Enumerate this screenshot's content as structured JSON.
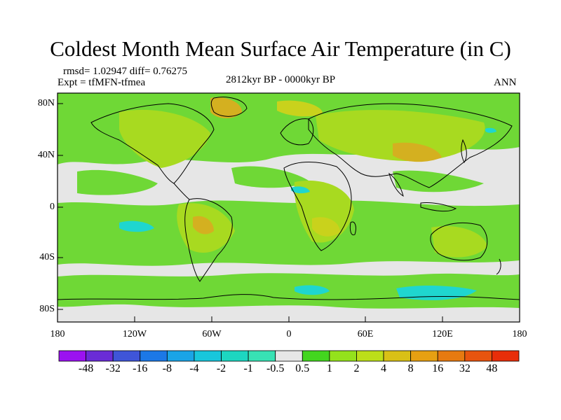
{
  "title": "Coldest Month Mean Surface Air Temperature (in C)",
  "stats": "rmsd= 1.02947 diff= 0.76275",
  "experiment": "Expt = tfMFN-tfmea",
  "period": "2812kyr BP - 0000kyr BP",
  "season": "ANN",
  "lat_ticks": [
    "80N",
    "40N",
    "0",
    "40S",
    "80S"
  ],
  "lon_ticks": [
    "180",
    "120W",
    "60W",
    "0",
    "60E",
    "120E",
    "180"
  ],
  "colorbar": {
    "labels": [
      "-48",
      "-32",
      "-16",
      "-8",
      "-4",
      "-2",
      "-1",
      "-0.5",
      "0.5",
      "1",
      "2",
      "4",
      "8",
      "16",
      "32",
      "48"
    ],
    "colors": [
      "#9b12f0",
      "#6a2cd6",
      "#3f55d8",
      "#1c78e6",
      "#1aa4e6",
      "#18c6dc",
      "#1dd6c0",
      "#38e2b4",
      "#e6e6e6",
      "#43d61f",
      "#94e21c",
      "#bcdf19",
      "#d9c016",
      "#e6a012",
      "#e67a10",
      "#e8540e",
      "#e82e0a"
    ]
  },
  "colors": {
    "green": "#6fd836",
    "yellowgreen": "#a8da20",
    "olive": "#c9d21c",
    "orange": "#d4b020",
    "cyan": "#1fd6cf",
    "gray": "#e6e6e6",
    "coast": "#000000"
  }
}
